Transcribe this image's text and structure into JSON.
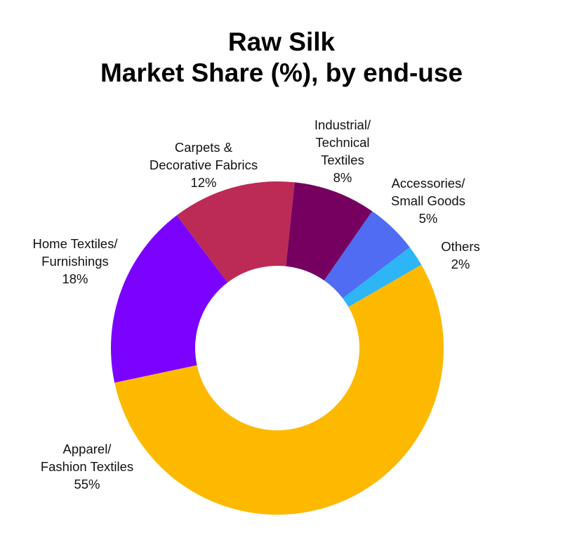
{
  "title": {
    "line1": "Raw Silk",
    "line2": "Market Share (%), by end-use"
  },
  "chart_data": {
    "type": "pie",
    "variant": "donut",
    "title": "Raw Silk Market Share (%), by end-use",
    "start_angle_deg": 60,
    "direction": "clockwise",
    "slices": [
      {
        "label": "Apparel/ Fashion Textiles",
        "lines": [
          "Apparel/",
          "Fashion Textiles"
        ],
        "value": 55,
        "display": "55%",
        "color": "#FDB900"
      },
      {
        "label": "Home Textiles/ Furnishings",
        "lines": [
          "Home Textiles/",
          "Furnishings"
        ],
        "value": 18,
        "display": "18%",
        "color": "#7B02FF"
      },
      {
        "label": "Carpets & Decorative Fabrics",
        "lines": [
          "Carpets &",
          "Decorative Fabrics"
        ],
        "value": 12,
        "display": "12%",
        "color": "#BC2A56"
      },
      {
        "label": "Industrial/ Technical Textiles",
        "lines": [
          "Industrial/",
          "Technical",
          "Textiles"
        ],
        "value": 8,
        "display": "8%",
        "color": "#760060"
      },
      {
        "label": "Accessories/ Small Goods",
        "lines": [
          "Accessories/",
          "Small Goods"
        ],
        "value": 5,
        "display": "5%",
        "color": "#4F6CF2"
      },
      {
        "label": "Others",
        "lines": [
          "Others"
        ],
        "value": 2,
        "display": "2%",
        "color": "#2DB5F5"
      }
    ],
    "legend": "none (labels placed outside slices)"
  },
  "labels": {
    "apparel": {
      "l1": "Apparel/",
      "l2": "Fashion Textiles",
      "pct": "55%"
    },
    "home": {
      "l1": "Home Textiles/",
      "l2": "Furnishings",
      "pct": "18%"
    },
    "carpets": {
      "l1": "Carpets &",
      "l2": "Decorative Fabrics",
      "pct": "12%"
    },
    "industrial": {
      "l1": "Industrial/",
      "l2": "Technical",
      "l3": "Textiles",
      "pct": "8%"
    },
    "accessories": {
      "l1": "Accessories/",
      "l2": "Small Goods",
      "pct": "5%"
    },
    "others": {
      "l1": "Others",
      "pct": "2%"
    }
  }
}
